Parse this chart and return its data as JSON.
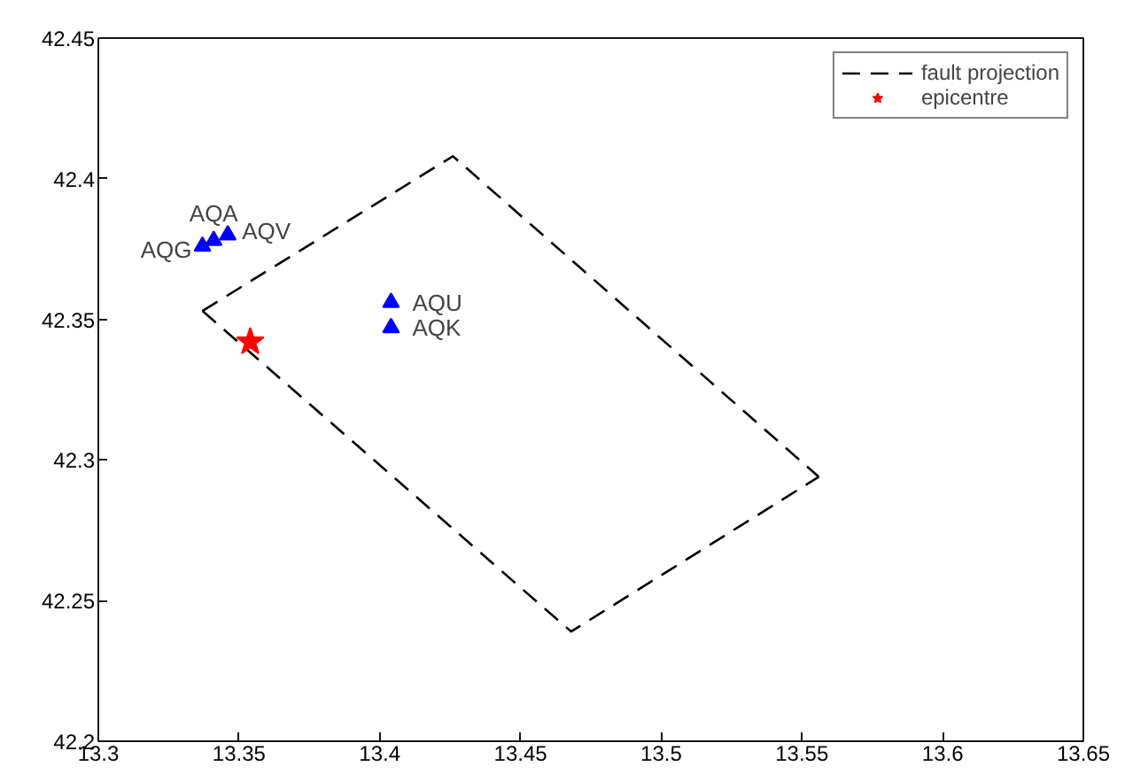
{
  "chart_data": {
    "type": "line",
    "xlim": [
      13.3,
      13.65
    ],
    "ylim": [
      42.2,
      42.45
    ],
    "xticks": [
      13.3,
      13.35,
      13.4,
      13.45,
      13.5,
      13.55,
      13.6,
      13.65
    ],
    "yticks": [
      42.2,
      42.25,
      42.3,
      42.35,
      42.4,
      42.45
    ],
    "grid": false,
    "legend": "top right",
    "series": [
      {
        "name": "fault projection",
        "color": "#000000",
        "line_style": "dashed",
        "marker": "none",
        "x": [
          13.337,
          13.426,
          13.556
        ],
        "values": [
          42.353,
          42.408,
          42.294
        ]
      },
      {
        "color": "#000000",
        "line_style": "dashed",
        "marker": "none",
        "x": [
          13.337,
          13.468,
          13.556
        ],
        "values": [
          42.353,
          42.239,
          42.294
        ]
      },
      {
        "name": "epicentre",
        "type": "scatter",
        "color": "#ff0000",
        "marker": "star",
        "x": [
          13.354
        ],
        "values": [
          42.342
        ]
      },
      {
        "type": "scatter",
        "color": "#0000ff",
        "marker": "triangle",
        "x": [
          13.337,
          13.341,
          13.346,
          13.404,
          13.404
        ],
        "values": [
          42.376,
          42.378,
          42.38,
          42.356,
          42.347
        ]
      }
    ],
    "annotations": [
      {
        "text": "AQG",
        "x": 13.337,
        "y": 42.376
      },
      {
        "text": "AQA",
        "x": 13.341,
        "y": 42.378
      },
      {
        "text": "AQV",
        "x": 13.346,
        "y": 42.38
      },
      {
        "text": "AQU",
        "x": 13.404,
        "y": 42.356
      },
      {
        "text": "AQK",
        "x": 13.404,
        "y": 42.347
      }
    ]
  }
}
